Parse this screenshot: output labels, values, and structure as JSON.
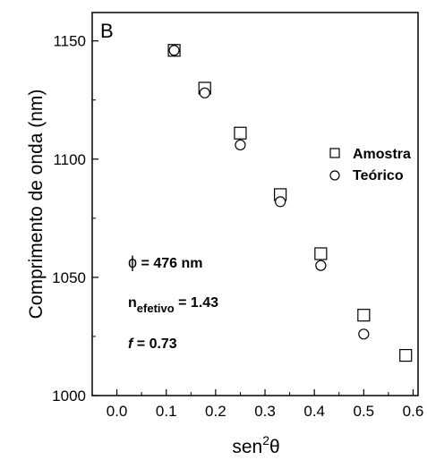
{
  "chart_data": {
    "type": "scatter",
    "panel_label": "B",
    "xlabel": {
      "prefix": "sen",
      "sup": "2",
      "suffix": "θ"
    },
    "ylabel": "Comprimento de onda (nm)",
    "xlim": [
      -0.05,
      0.61
    ],
    "ylim": [
      1000,
      1162
    ],
    "x_ticks": [
      "0.0",
      "0.1",
      "0.2",
      "0.3",
      "0.4",
      "0.5",
      "0.6"
    ],
    "y_ticks": [
      "1000",
      "1050",
      "1100",
      "1150"
    ],
    "grid": false,
    "legend_position": "right",
    "series": [
      {
        "name": "Amostra",
        "marker": "square",
        "x": [
          0.116,
          0.178,
          0.25,
          0.331,
          0.413,
          0.5,
          0.585
        ],
        "y": [
          1146,
          1130,
          1111,
          1085,
          1060,
          1034,
          1017
        ]
      },
      {
        "name": "Teórico",
        "marker": "circle",
        "x": [
          0.116,
          0.178,
          0.25,
          0.331,
          0.413,
          0.5
        ],
        "y": [
          1146,
          1128,
          1106,
          1082,
          1055,
          1026
        ]
      }
    ],
    "annotations": [
      {
        "symbol": "ϕ",
        "text": " = 476 nm"
      },
      {
        "main": "n",
        "sub": "efetivo",
        "text": " = 1.43"
      },
      {
        "italic": "f",
        "text": " = 0.73"
      }
    ]
  }
}
